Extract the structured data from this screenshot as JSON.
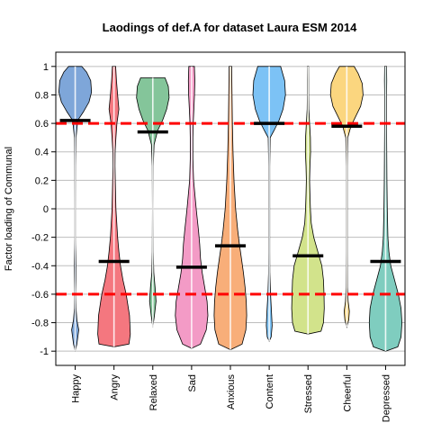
{
  "chart_data": {
    "type": "violin",
    "title": "Laodings of def.A for dataset Laura ESM 2014",
    "xlabel": "",
    "ylabel": "Factor loading of Communal",
    "ylim": [
      -1.1,
      1.1
    ],
    "yticks": [
      -1,
      -0.8,
      -0.6,
      -0.4,
      -0.2,
      0,
      0.2,
      0.4,
      0.6,
      0.8,
      1
    ],
    "ytick_labels": [
      "-1",
      "-0.8",
      "-0.6",
      "-0.4",
      "-0.2",
      "0",
      "0.2",
      "0.4",
      "0.6",
      "0.8",
      "1"
    ],
    "grid": true,
    "reference_lines": [
      0.6,
      -0.6
    ],
    "reference_line_color": "#ff0000",
    "categories": [
      "Happy",
      "Angry",
      "Relaxed",
      "Sad",
      "Anxious",
      "Content",
      "Stressed",
      "Cheerful",
      "Depressed"
    ],
    "means": [
      0.62,
      -0.37,
      0.54,
      -0.41,
      -0.26,
      0.6,
      -0.33,
      0.58,
      -0.37
    ],
    "colors": [
      "#7ea6d9",
      "#f4777f",
      "#84c59a",
      "#f39bc6",
      "#f8ae79",
      "#7cc2f5",
      "#d2e38b",
      "#fbd67f",
      "#7fcdbf"
    ],
    "series": [
      {
        "name": "Happy",
        "profile": [
          [
            -1.0,
            0.0
          ],
          [
            -0.95,
            0.1
          ],
          [
            -0.85,
            0.22
          ],
          [
            -0.78,
            0.1
          ],
          [
            -0.7,
            0.05
          ],
          [
            -0.6,
            0.03
          ],
          [
            -0.5,
            0.05
          ],
          [
            -0.4,
            0.06
          ],
          [
            -0.3,
            0.04
          ],
          [
            -0.2,
            0.02
          ],
          [
            0.0,
            0.02
          ],
          [
            0.3,
            0.03
          ],
          [
            0.5,
            0.05
          ],
          [
            0.62,
            0.15
          ],
          [
            0.68,
            0.5
          ],
          [
            0.75,
            0.85
          ],
          [
            0.82,
            1.0
          ],
          [
            0.9,
            0.95
          ],
          [
            0.96,
            0.7
          ],
          [
            1.0,
            0.4
          ]
        ]
      },
      {
        "name": "Angry",
        "profile": [
          [
            -0.97,
            0.0
          ],
          [
            -0.95,
            0.92
          ],
          [
            -0.88,
            1.0
          ],
          [
            -0.75,
            0.95
          ],
          [
            -0.6,
            0.75
          ],
          [
            -0.5,
            0.55
          ],
          [
            -0.4,
            0.4
          ],
          [
            -0.3,
            0.3
          ],
          [
            -0.2,
            0.22
          ],
          [
            0.0,
            0.12
          ],
          [
            0.2,
            0.08
          ],
          [
            0.3,
            0.06
          ],
          [
            0.4,
            0.07
          ],
          [
            0.5,
            0.12
          ],
          [
            0.6,
            0.18
          ],
          [
            0.7,
            0.3
          ],
          [
            0.8,
            0.22
          ],
          [
            0.9,
            0.15
          ],
          [
            1.0,
            0.1
          ]
        ]
      },
      {
        "name": "Relaxed",
        "profile": [
          [
            -0.83,
            0.0
          ],
          [
            -0.75,
            0.1
          ],
          [
            -0.65,
            0.2
          ],
          [
            -0.55,
            0.14
          ],
          [
            -0.45,
            0.06
          ],
          [
            -0.3,
            0.03
          ],
          [
            0.0,
            0.02
          ],
          [
            0.3,
            0.03
          ],
          [
            0.45,
            0.08
          ],
          [
            0.55,
            0.3
          ],
          [
            0.62,
            0.6
          ],
          [
            0.7,
            0.85
          ],
          [
            0.78,
            1.0
          ],
          [
            0.86,
            0.95
          ],
          [
            0.92,
            0.75
          ]
        ]
      },
      {
        "name": "Sad",
        "profile": [
          [
            -0.98,
            0.0
          ],
          [
            -0.95,
            0.55
          ],
          [
            -0.85,
            0.9
          ],
          [
            -0.75,
            1.0
          ],
          [
            -0.65,
            0.95
          ],
          [
            -0.55,
            0.8
          ],
          [
            -0.45,
            0.65
          ],
          [
            -0.35,
            0.55
          ],
          [
            -0.25,
            0.5
          ],
          [
            -0.15,
            0.42
          ],
          [
            0.0,
            0.28
          ],
          [
            0.2,
            0.12
          ],
          [
            0.35,
            0.08
          ],
          [
            0.5,
            0.08
          ],
          [
            0.6,
            0.1
          ],
          [
            0.7,
            0.14
          ],
          [
            0.8,
            0.18
          ],
          [
            0.9,
            0.2
          ],
          [
            1.0,
            0.17
          ]
        ]
      },
      {
        "name": "Anxious",
        "profile": [
          [
            -0.99,
            0.0
          ],
          [
            -0.95,
            0.72
          ],
          [
            -0.85,
            0.95
          ],
          [
            -0.75,
            1.0
          ],
          [
            -0.65,
            0.97
          ],
          [
            -0.55,
            0.9
          ],
          [
            -0.45,
            0.8
          ],
          [
            -0.35,
            0.68
          ],
          [
            -0.25,
            0.55
          ],
          [
            -0.15,
            0.45
          ],
          [
            0.0,
            0.32
          ],
          [
            0.2,
            0.22
          ],
          [
            0.4,
            0.16
          ],
          [
            0.6,
            0.12
          ],
          [
            0.8,
            0.1
          ],
          [
            1.0,
            0.08
          ]
        ]
      },
      {
        "name": "Content",
        "profile": [
          [
            -0.93,
            0.0
          ],
          [
            -0.9,
            0.12
          ],
          [
            -0.82,
            0.18
          ],
          [
            -0.72,
            0.14
          ],
          [
            -0.6,
            0.08
          ],
          [
            -0.45,
            0.04
          ],
          [
            -0.3,
            0.03
          ],
          [
            0.0,
            0.03
          ],
          [
            0.3,
            0.03
          ],
          [
            0.5,
            0.06
          ],
          [
            0.55,
            0.3
          ],
          [
            0.62,
            0.6
          ],
          [
            0.7,
            0.85
          ],
          [
            0.8,
            1.0
          ],
          [
            0.9,
            0.95
          ],
          [
            1.0,
            0.7
          ]
        ]
      },
      {
        "name": "Stressed",
        "profile": [
          [
            -0.88,
            0.0
          ],
          [
            -0.86,
            0.8
          ],
          [
            -0.8,
            0.95
          ],
          [
            -0.7,
            1.0
          ],
          [
            -0.6,
            0.98
          ],
          [
            -0.5,
            0.95
          ],
          [
            -0.4,
            0.85
          ],
          [
            -0.3,
            0.6
          ],
          [
            -0.2,
            0.35
          ],
          [
            -0.1,
            0.2
          ],
          [
            0.0,
            0.15
          ],
          [
            0.1,
            0.12
          ],
          [
            0.2,
            0.1
          ],
          [
            0.3,
            0.12
          ],
          [
            0.4,
            0.16
          ],
          [
            0.5,
            0.15
          ],
          [
            0.6,
            0.1
          ],
          [
            0.7,
            0.05
          ],
          [
            0.8,
            0.04
          ],
          [
            0.9,
            0.04
          ],
          [
            1.0,
            0.03
          ]
        ]
      },
      {
        "name": "Cheerful",
        "profile": [
          [
            -0.83,
            0.0
          ],
          [
            -0.78,
            0.12
          ],
          [
            -0.72,
            0.16
          ],
          [
            -0.65,
            0.08
          ],
          [
            -0.55,
            0.04
          ],
          [
            -0.3,
            0.03
          ],
          [
            0.0,
            0.03
          ],
          [
            0.3,
            0.03
          ],
          [
            0.5,
            0.06
          ],
          [
            0.58,
            0.25
          ],
          [
            0.65,
            0.55
          ],
          [
            0.72,
            0.85
          ],
          [
            0.8,
            1.0
          ],
          [
            0.88,
            0.95
          ],
          [
            0.95,
            0.7
          ],
          [
            1.0,
            0.45
          ]
        ]
      },
      {
        "name": "Depressed",
        "profile": [
          [
            -1.0,
            0.0
          ],
          [
            -0.97,
            0.75
          ],
          [
            -0.9,
            0.95
          ],
          [
            -0.8,
            1.0
          ],
          [
            -0.7,
            0.95
          ],
          [
            -0.6,
            0.78
          ],
          [
            -0.5,
            0.55
          ],
          [
            -0.4,
            0.32
          ],
          [
            -0.3,
            0.2
          ],
          [
            -0.2,
            0.14
          ],
          [
            0.0,
            0.1
          ],
          [
            0.2,
            0.08
          ],
          [
            0.4,
            0.07
          ],
          [
            0.6,
            0.06
          ],
          [
            0.8,
            0.06
          ],
          [
            0.9,
            0.07
          ],
          [
            1.0,
            0.06
          ]
        ]
      }
    ]
  }
}
